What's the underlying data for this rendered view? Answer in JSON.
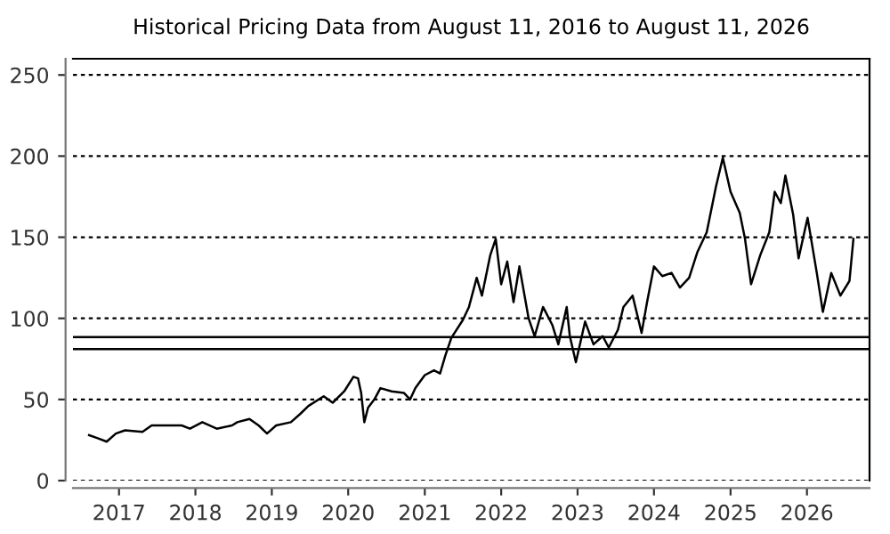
{
  "chart_data": {
    "type": "line",
    "title": "Historical Pricing Data from August 11, 2016 to August 11, 2026",
    "x": [
      "2016-08-11",
      "2016-09-24",
      "2016-11-03",
      "2016-12-17",
      "2017-01-30",
      "2017-04-23",
      "2017-06-06",
      "2017-07-31",
      "2017-10-27",
      "2017-12-06",
      "2018-02-03",
      "2018-04-13",
      "2018-06-25",
      "2018-07-20",
      "2018-09-16",
      "2018-10-30",
      "2018-12-09",
      "2019-01-22",
      "2019-04-02",
      "2019-05-16",
      "2019-06-25",
      "2019-09-06",
      "2019-10-19",
      "2019-12-13",
      "2020-01-26",
      "2020-02-17",
      "2020-03-03",
      "2020-03-18",
      "2020-04-05",
      "2020-05-05",
      "2020-06-03",
      "2020-07-27",
      "2020-09-24",
      "2020-10-23",
      "2020-11-17",
      "2021-01-01",
      "2021-02-14",
      "2021-03-15",
      "2021-04-09",
      "2021-05-08",
      "2021-07-02",
      "2021-07-31",
      "2021-09-06",
      "2021-10-01",
      "2021-11-10",
      "2021-12-06",
      "2022-01-01",
      "2022-01-30",
      "2022-03-01",
      "2022-03-29",
      "2022-05-12",
      "2022-06-10",
      "2022-07-20",
      "2022-09-02",
      "2022-10-01",
      "2022-11-10",
      "2022-11-25",
      "2022-12-24",
      "2023-02-06",
      "2023-03-18",
      "2023-05-01",
      "2023-05-30",
      "2023-07-13",
      "2023-08-08",
      "2023-09-21",
      "2023-11-03",
      "2023-11-29",
      "2024-01-01",
      "2024-02-10",
      "2024-03-25",
      "2024-05-04",
      "2024-06-17",
      "2024-07-27",
      "2024-09-09",
      "2024-10-23",
      "2024-11-25",
      "2025-01-01",
      "2025-02-14",
      "2025-03-11",
      "2025-04-09",
      "2025-05-23",
      "2025-07-05",
      "2025-07-31",
      "2025-08-29",
      "2025-09-20",
      "2025-10-27",
      "2025-11-22",
      "2026-01-04",
      "2026-02-17",
      "2026-03-18",
      "2026-04-27",
      "2026-06-10",
      "2026-07-23",
      "2026-08-11"
    ],
    "series": [
      {
        "color": "#000000",
        "values": [
          28,
          26,
          24,
          29,
          31,
          30,
          34,
          34,
          34,
          32,
          36,
          32,
          34,
          36,
          38,
          34,
          29,
          34,
          36,
          41,
          46,
          52,
          48,
          55,
          64,
          63,
          54,
          36,
          45,
          50,
          57,
          55,
          54,
          50,
          57,
          65,
          68,
          66,
          77,
          88,
          99,
          107,
          125,
          114,
          139,
          149,
          121,
          135,
          110,
          132,
          100,
          89,
          107,
          96,
          84,
          107,
          89,
          73,
          98,
          84,
          89,
          82,
          93,
          107,
          114,
          91,
          110,
          132,
          126,
          128,
          119,
          125,
          141,
          153,
          181,
          199,
          178,
          165,
          149,
          121,
          139,
          153,
          178,
          171,
          188,
          164,
          137,
          162,
          128,
          104,
          128,
          114,
          123,
          149
        ]
      }
    ],
    "xlim": [
      "2016-05-26",
      "2026-10-27"
    ],
    "xticks": [
      "2017",
      "2018",
      "2019",
      "2020",
      "2021",
      "2022",
      "2023",
      "2024",
      "2025",
      "2026"
    ],
    "ylim": [
      0,
      260
    ],
    "yticks": [
      0,
      50,
      100,
      150,
      200,
      250
    ],
    "ref_lines": [
      {
        "axis": "y",
        "value": 88.5,
        "color": "#000000",
        "line_style": "solid"
      },
      {
        "axis": "y",
        "value": 81,
        "color": "#000000",
        "line_style": "solid"
      }
    ],
    "grid": "y",
    "line_style": "solid",
    "marker": "none",
    "legend": false
  }
}
